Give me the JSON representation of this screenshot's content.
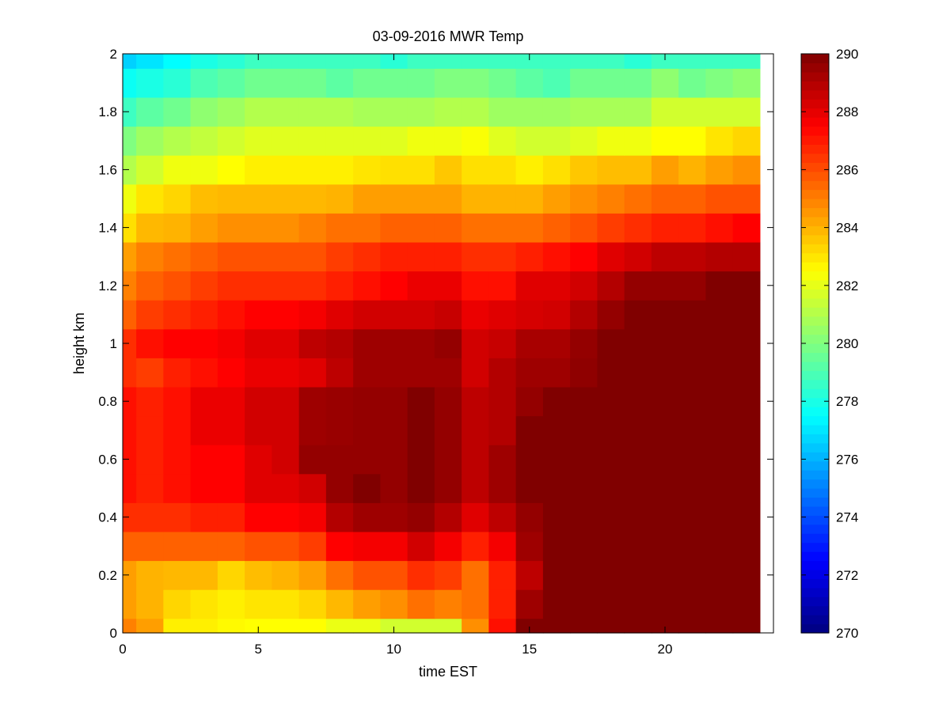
{
  "chart_data": {
    "type": "heatmap",
    "title": "03-09-2016 MWR Temp",
    "xlabel": "time EST",
    "ylabel": "height km",
    "xlim": [
      0,
      24
    ],
    "ylim": [
      0,
      2
    ],
    "xticks": [
      "0",
      "5",
      "10",
      "15",
      "20"
    ],
    "yticks": [
      "0",
      "0.2",
      "0.4",
      "0.6",
      "0.8",
      "1",
      "1.2",
      "1.4",
      "1.6",
      "1.8",
      "2"
    ],
    "colormap": "jet",
    "clim": [
      270,
      290
    ],
    "colorbar_ticks": [
      "270",
      "272",
      "274",
      "276",
      "278",
      "280",
      "282",
      "284",
      "286",
      "288",
      "290"
    ],
    "colorbar_location": "right",
    "x": [
      0,
      1,
      2,
      3,
      4,
      5,
      6,
      7,
      8,
      9,
      10,
      11,
      12,
      13,
      14,
      15,
      16,
      17,
      18,
      19,
      20,
      21,
      22,
      23
    ],
    "y": [
      0,
      0.1,
      0.2,
      0.3,
      0.4,
      0.5,
      0.6,
      0.7,
      0.8,
      0.9,
      1.0,
      1.1,
      1.2,
      1.3,
      1.4,
      1.5,
      1.6,
      1.7,
      1.8,
      1.9,
      2.0
    ],
    "z": [
      [
        285,
        284.4,
        282.8,
        282.8,
        282.6,
        282.5,
        282.5,
        282.5,
        282.1,
        282.1,
        281.6,
        281.6,
        281.6,
        284.7,
        287.2,
        290,
        290,
        290,
        290,
        290,
        290,
        290,
        290,
        290
      ],
      [
        284.4,
        284,
        283.3,
        283,
        282.8,
        283,
        283,
        283.3,
        283.9,
        284.4,
        284.7,
        285.3,
        285,
        285.3,
        286.9,
        289.4,
        290,
        290,
        290,
        290,
        290,
        290,
        290,
        290
      ],
      [
        284.4,
        284,
        283.9,
        283.9,
        283.3,
        283.8,
        284,
        284.4,
        285.3,
        285.9,
        285.9,
        286.6,
        286.3,
        285.3,
        286.9,
        288.8,
        290,
        290,
        290,
        290,
        290,
        290,
        290,
        290
      ],
      [
        285.6,
        285.6,
        285.6,
        285.6,
        285.6,
        285.9,
        285.9,
        286.3,
        287.5,
        287.7,
        287.7,
        288.4,
        287.7,
        286.9,
        287.7,
        289.4,
        290,
        290,
        290,
        290,
        290,
        290,
        290,
        290
      ],
      [
        286.6,
        286.6,
        286.6,
        286.9,
        286.9,
        287.5,
        287.5,
        287.7,
        289,
        289.4,
        289.4,
        289.6,
        289,
        288.1,
        288.8,
        289.6,
        290,
        290,
        290,
        290,
        290,
        290,
        290,
        290
      ],
      [
        287.2,
        286.9,
        287.2,
        287.5,
        287.5,
        288.1,
        288.1,
        288.4,
        289.6,
        290,
        289.6,
        290,
        289.6,
        288.8,
        289.4,
        290,
        290,
        290,
        290,
        290,
        290,
        290,
        290,
        290
      ],
      [
        287.2,
        286.9,
        287.2,
        287.5,
        287.5,
        288.1,
        288.4,
        289.6,
        289.6,
        289.6,
        289.6,
        290,
        289.6,
        288.8,
        289.4,
        290,
        290,
        290,
        290,
        290,
        290,
        290,
        290,
        290
      ],
      [
        287.2,
        286.9,
        287.2,
        287.9,
        287.9,
        288.4,
        288.4,
        289.4,
        289.5,
        289.6,
        289.6,
        290,
        289.6,
        288.8,
        289,
        290,
        290,
        290,
        290,
        290,
        290,
        290,
        290,
        290
      ],
      [
        287.2,
        286.9,
        287.2,
        287.9,
        287.9,
        288.4,
        288.4,
        289.4,
        289.5,
        289.6,
        289.6,
        290,
        289.6,
        288.8,
        289,
        289.6,
        290,
        290,
        290,
        290,
        290,
        290,
        290,
        290
      ],
      [
        286.6,
        286.3,
        286.9,
        287.2,
        287.5,
        287.9,
        287.9,
        288.1,
        288.8,
        289.4,
        289.4,
        289.4,
        289.4,
        288.4,
        289,
        289.4,
        289.4,
        289.7,
        290,
        290,
        290,
        290,
        290,
        290
      ],
      [
        286.6,
        287.2,
        287.5,
        287.5,
        287.7,
        288.1,
        288.1,
        288.8,
        289,
        289.4,
        289.4,
        289.4,
        289.6,
        288.4,
        288.6,
        289.2,
        289.2,
        289.6,
        290,
        290,
        290,
        290,
        290,
        290
      ],
      [
        285.6,
        286.3,
        286.6,
        286.9,
        287.2,
        287.5,
        287.5,
        287.7,
        288.1,
        288.4,
        288.4,
        288.4,
        288.6,
        287.9,
        288.1,
        288.3,
        288.4,
        289,
        289.6,
        290,
        290,
        290,
        290,
        290
      ],
      [
        285,
        285.6,
        285.9,
        286.3,
        286.6,
        286.6,
        286.6,
        286.6,
        286.9,
        287.2,
        287.5,
        287.9,
        287.9,
        287.2,
        287.2,
        288.1,
        288.1,
        288.4,
        289,
        289.6,
        289.6,
        289.6,
        290,
        290
      ],
      [
        284.4,
        285,
        285.3,
        285.6,
        285.9,
        285.9,
        285.9,
        285.9,
        286.3,
        286.6,
        286.9,
        286.9,
        286.9,
        286.6,
        286.6,
        286.9,
        287.2,
        287.5,
        288.1,
        288.4,
        288.8,
        288.8,
        289,
        289
      ],
      [
        283.1,
        283.9,
        284,
        284.4,
        284.7,
        284.7,
        284.7,
        285,
        285.3,
        285.3,
        285.6,
        285.6,
        285.6,
        285.3,
        285.3,
        285.3,
        285.6,
        285.9,
        286.3,
        286.6,
        286.9,
        286.9,
        287.2,
        287.5
      ],
      [
        282.2,
        283,
        283.3,
        283.8,
        283.9,
        283.9,
        283.9,
        283.9,
        284,
        284.4,
        284.4,
        284.4,
        284.4,
        284,
        284,
        284,
        284.4,
        284.7,
        285,
        285.3,
        285.6,
        285.6,
        285.9,
        285.9
      ],
      [
        281,
        281.6,
        282.2,
        282.2,
        282.5,
        282.8,
        282.8,
        282.8,
        282.8,
        283,
        283.1,
        283.1,
        283.6,
        283.1,
        283.1,
        282.8,
        283.1,
        283.6,
        283.8,
        283.8,
        284.4,
        284,
        284.4,
        284.7
      ],
      [
        280,
        280.6,
        281,
        281.3,
        281.6,
        281.9,
        281.9,
        281.9,
        281.9,
        281.9,
        281.9,
        282.2,
        282.2,
        282.4,
        281.9,
        281.6,
        281.6,
        281.9,
        282.2,
        282.2,
        282.5,
        282.5,
        283,
        283.3
      ],
      [
        278.7,
        279.3,
        279.7,
        280.3,
        280.6,
        281,
        281,
        281,
        281,
        280.8,
        280.8,
        280.8,
        281,
        281,
        280.6,
        280.6,
        280.6,
        280.8,
        280.8,
        280.8,
        281.6,
        281.6,
        281.6,
        281.6
      ],
      [
        277.7,
        278,
        278.3,
        279,
        279.3,
        279.7,
        279.7,
        279.7,
        279.3,
        279.7,
        279.7,
        279.7,
        280,
        280,
        279.7,
        279.3,
        279,
        279.7,
        279.7,
        279.7,
        280.3,
        279.7,
        280,
        280.3
      ],
      [
        276.6,
        277,
        277.5,
        278,
        278.3,
        278.7,
        278.7,
        278.7,
        278.7,
        278.7,
        278.3,
        278.7,
        278.7,
        278.7,
        278.7,
        278.7,
        278.7,
        278.7,
        278.7,
        278.3,
        278.7,
        278.7,
        278.7,
        278.7
      ]
    ]
  }
}
